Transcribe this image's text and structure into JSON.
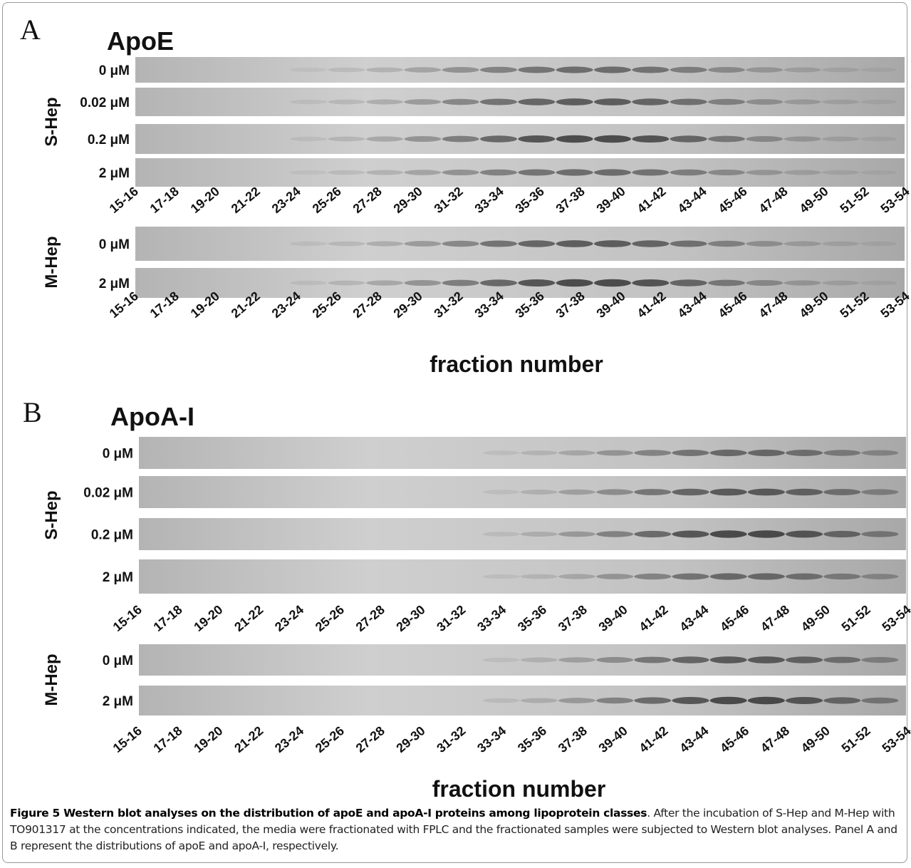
{
  "panels": [
    {
      "letter": "A",
      "title": "ApoE",
      "groups": [
        {
          "label": "S-Hep",
          "rows": [
            "0 μM",
            "0.02 μM",
            "0.2 μM",
            "2 μM"
          ]
        },
        {
          "label": "M-Hep",
          "rows": [
            "0 μM",
            "2 μM"
          ]
        }
      ],
      "fractions": [
        "15-16",
        "17-18",
        "19-20",
        "21-22",
        "23-24",
        "25-26",
        "27-28",
        "29-30",
        "31-32",
        "33-34",
        "35-36",
        "37-38",
        "39-40",
        "41-42",
        "43-44",
        "45-46",
        "47-48",
        "49-50",
        "51-52",
        "53-54"
      ],
      "xlabel": "fraction number"
    },
    {
      "letter": "B",
      "title": "ApoA-I",
      "groups": [
        {
          "label": "S-Hep",
          "rows": [
            "0 μM",
            "0.02 μM",
            "0.2 μM",
            "2 μM"
          ]
        },
        {
          "label": "M-Hep",
          "rows": [
            "0 μM",
            "2 μM"
          ]
        }
      ],
      "fractions": [
        "15-16",
        "17-18",
        "19-20",
        "21-22",
        "23-24",
        "25-26",
        "27-28",
        "29-30",
        "31-32",
        "33-34",
        "35-36",
        "37-38",
        "39-40",
        "41-42",
        "43-44",
        "45-46",
        "47-48",
        "49-50",
        "51-52",
        "53-54"
      ],
      "xlabel": "fraction number"
    }
  ],
  "caption": {
    "title": "Figure 5 Western blot analyses on the distribution of apoE and apoA-I proteins among lipoprotein classes",
    "text": ". After the incubation of S-Hep and M-Hep with TO901317 at the concentrations indicated, the media were fractionated with FPLC and the fractionated samples were subjected to Western blot analyses. Panel A and B represent the distributions of apoE and apoA-I, respectively."
  }
}
